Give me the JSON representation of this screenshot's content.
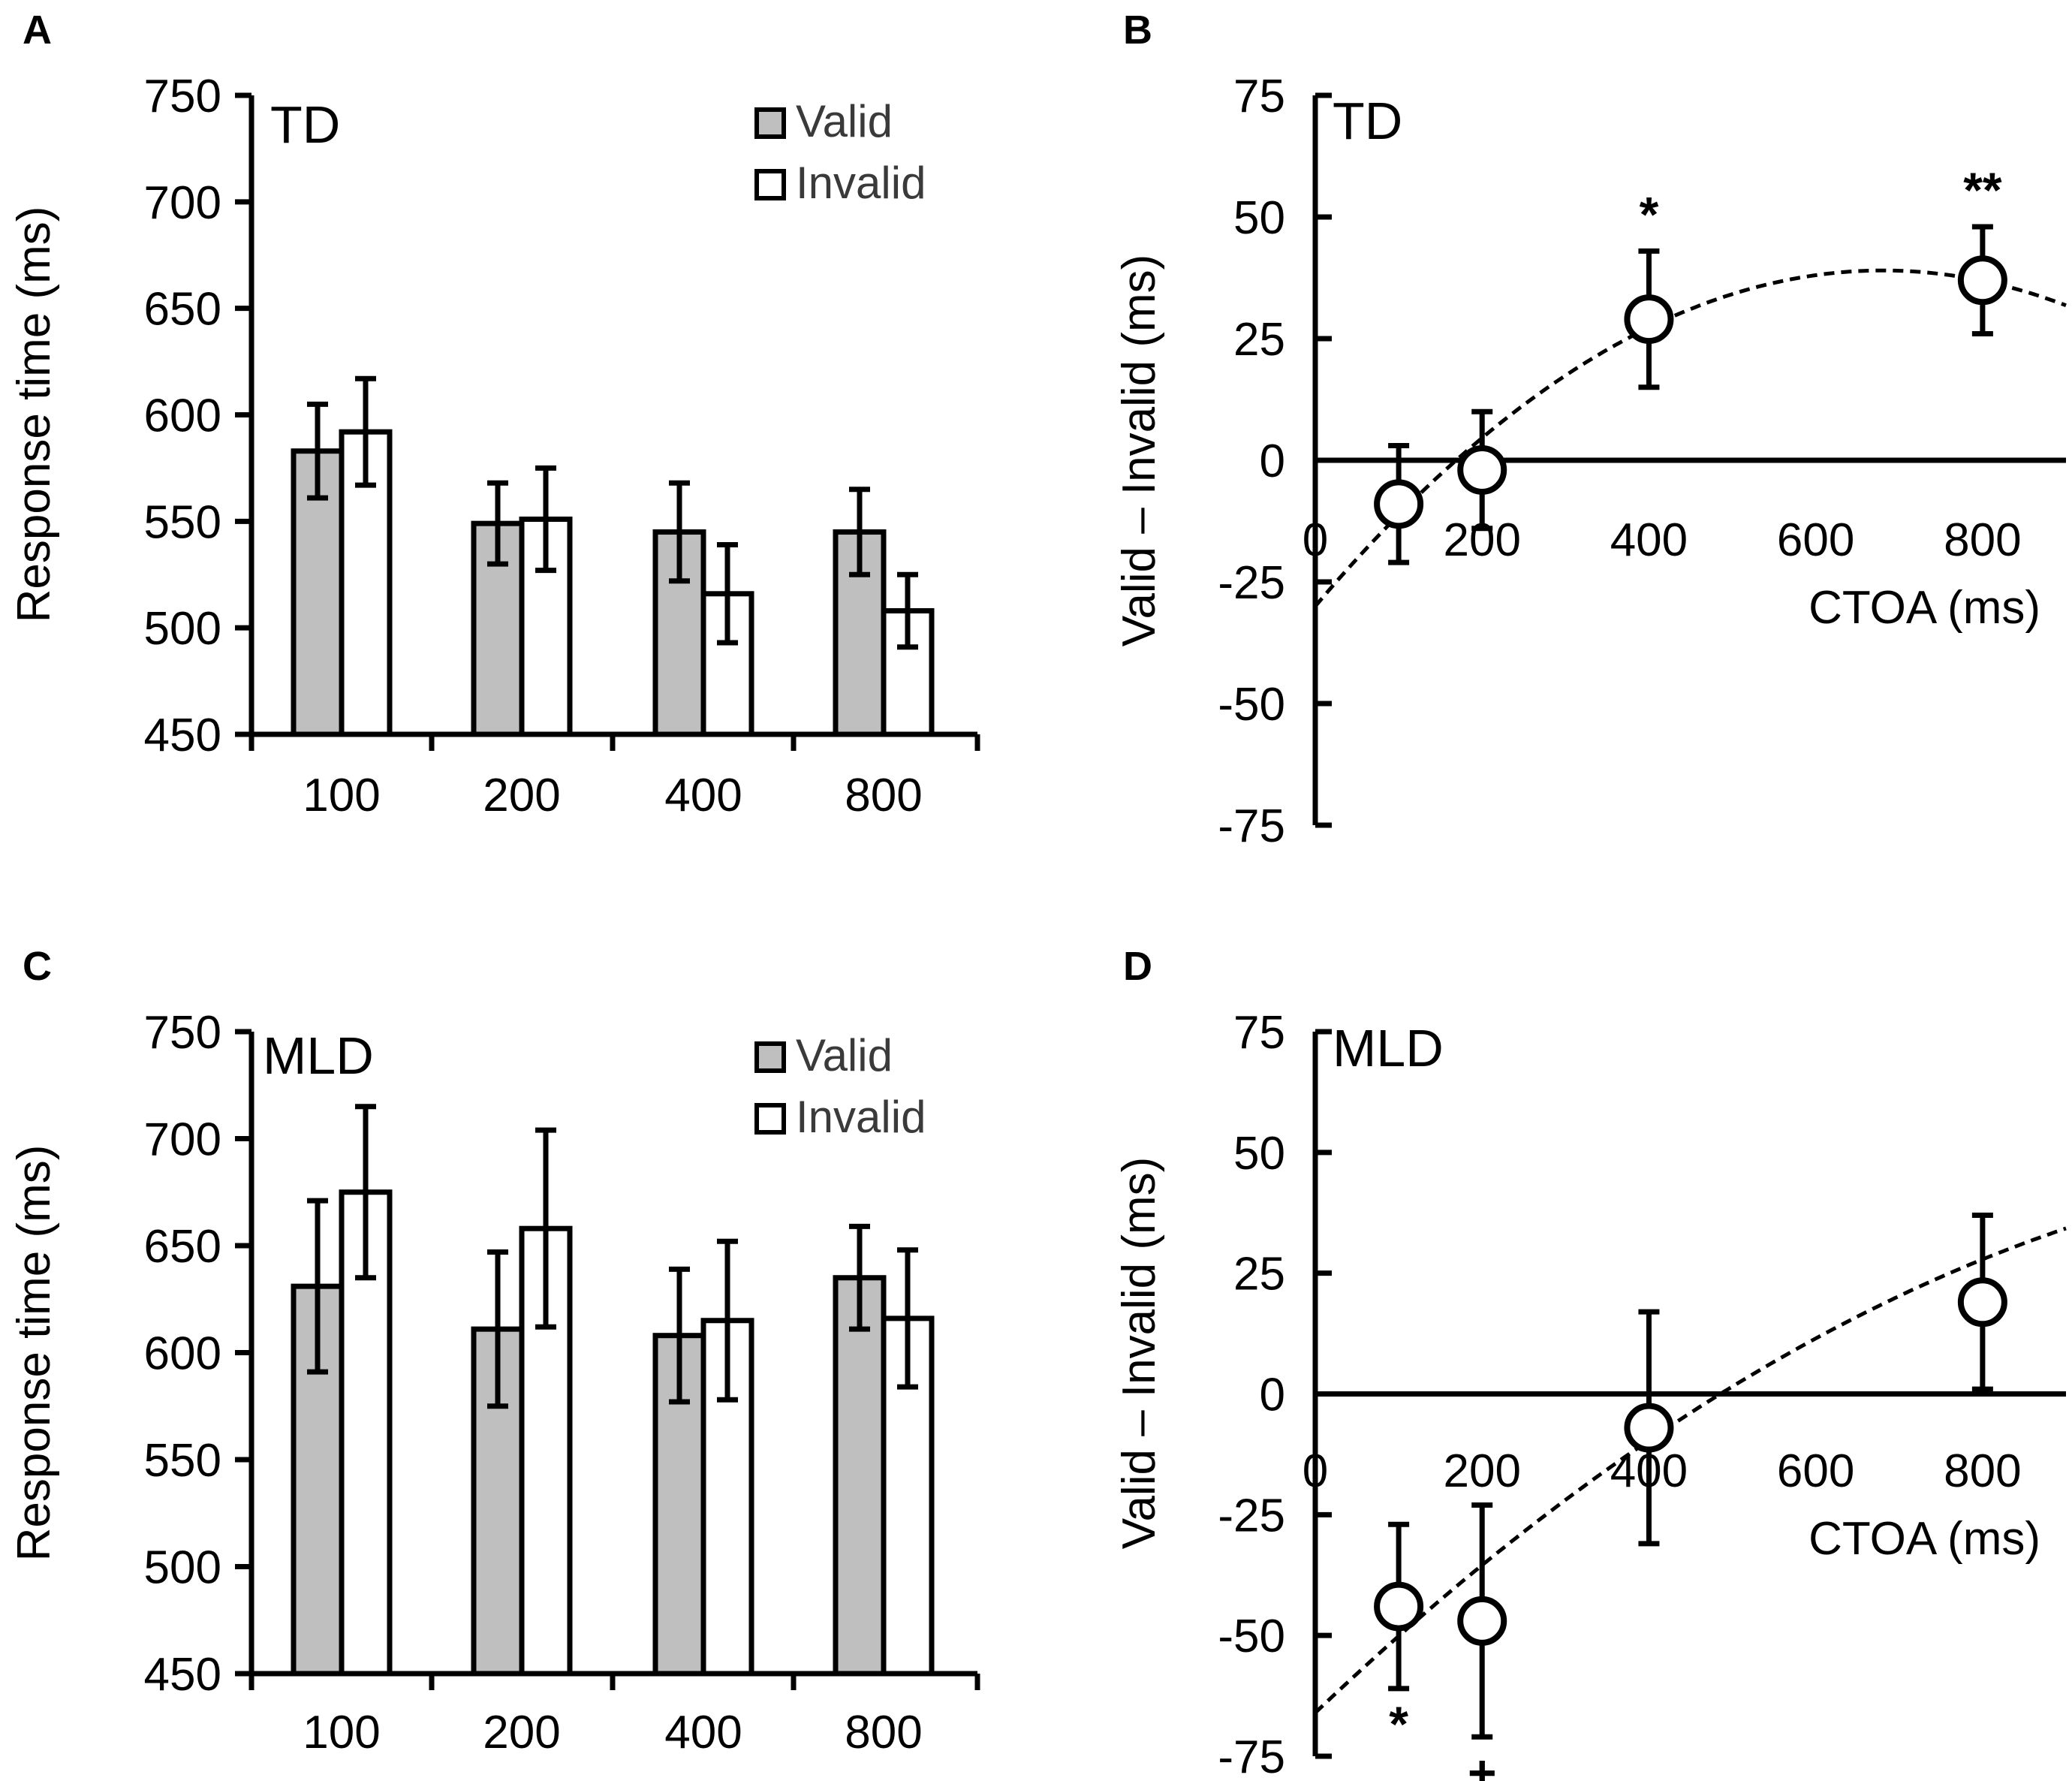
{
  "chart_data": [
    {
      "panel": "A",
      "type": "bar",
      "group_label": "TD",
      "ylabel": "Response time (ms)",
      "xlabel": "",
      "ylim": [
        450,
        750
      ],
      "yticks": [
        "450",
        "500",
        "550",
        "600",
        "650",
        "700",
        "750"
      ],
      "categories": [
        "100",
        "200",
        "400",
        "800"
      ],
      "legend": {
        "placement": "top-right",
        "entries": [
          "Valid",
          "Invalid"
        ]
      },
      "series": [
        {
          "name": "Valid",
          "color": "#bfbfbf",
          "values": [
            583,
            549,
            545,
            545
          ],
          "err": [
            22,
            19,
            23,
            20
          ]
        },
        {
          "name": "Invalid",
          "color": "#ffffff",
          "values": [
            592,
            551,
            516,
            508
          ],
          "err": [
            25,
            24,
            23,
            17
          ]
        }
      ]
    },
    {
      "panel": "B",
      "type": "scatter",
      "group_label": "TD",
      "ylabel": "Valid – Invalid (ms)",
      "xlabel": "CTOA (ms)",
      "xlim": [
        0,
        900
      ],
      "ylim": [
        -75,
        75
      ],
      "xticks": [
        "0",
        "200",
        "400",
        "600",
        "800"
      ],
      "yticks": [
        "75",
        "50",
        "25",
        "0",
        "-25",
        "-50",
        "-75"
      ],
      "points": [
        {
          "x": 100,
          "y": -9,
          "err": 12,
          "mark": ""
        },
        {
          "x": 200,
          "y": -2,
          "err": 12,
          "mark": ""
        },
        {
          "x": 400,
          "y": 29,
          "err": 14,
          "mark": "*"
        },
        {
          "x": 800,
          "y": 37,
          "err": 11,
          "mark": "**"
        }
      ],
      "fit": {
        "style": "dashed",
        "coefficients": [
          -30,
          0.2028,
          -0.000149
        ]
      }
    },
    {
      "panel": "C",
      "type": "bar",
      "group_label": "MLD",
      "ylabel": "Response time (ms)",
      "xlabel": "",
      "ylim": [
        450,
        750
      ],
      "yticks": [
        "450",
        "500",
        "550",
        "600",
        "650",
        "700",
        "750"
      ],
      "categories": [
        "100",
        "200",
        "400",
        "800"
      ],
      "legend": {
        "placement": "top-right",
        "entries": [
          "Valid",
          "Invalid"
        ]
      },
      "series": [
        {
          "name": "Valid",
          "color": "#bfbfbf",
          "values": [
            631,
            611,
            608,
            635
          ],
          "err": [
            40,
            36,
            31,
            24
          ]
        },
        {
          "name": "Invalid",
          "color": "#ffffff",
          "values": [
            675,
            658,
            615,
            616
          ],
          "err": [
            40,
            46,
            37,
            32
          ]
        }
      ]
    },
    {
      "panel": "D",
      "type": "scatter",
      "group_label": "MLD",
      "ylabel": "Valid – Invalid (ms)",
      "xlabel": "CTOA (ms)",
      "xlim": [
        0,
        900
      ],
      "ylim": [
        -75,
        75
      ],
      "xticks": [
        "0",
        "200",
        "400",
        "600",
        "800"
      ],
      "yticks": [
        "75",
        "50",
        "25",
        "0",
        "-25",
        "-50",
        "-75"
      ],
      "points": [
        {
          "x": 100,
          "y": -44,
          "err": 17,
          "mark": "*"
        },
        {
          "x": 200,
          "y": -47,
          "err": 24,
          "mark": "+"
        },
        {
          "x": 400,
          "y": -7,
          "err": 24,
          "mark": ""
        },
        {
          "x": 800,
          "y": 19,
          "err": 18,
          "mark": ""
        }
      ],
      "fit": {
        "style": "dashed",
        "coefficients": [
          -66,
          0.1646,
          -5.91e-05
        ]
      }
    }
  ]
}
